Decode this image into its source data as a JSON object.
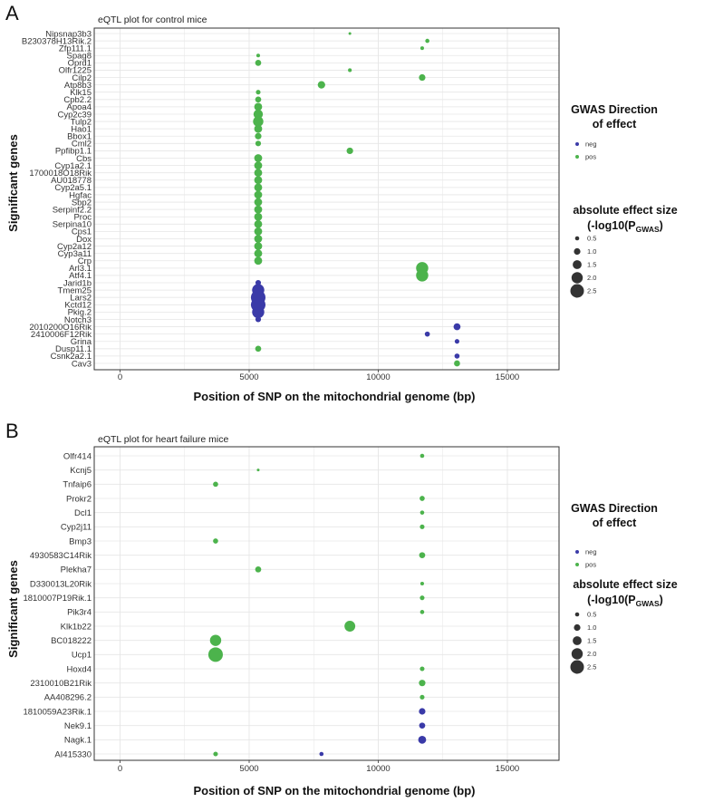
{
  "colors": {
    "neg": "#3a3aa8",
    "pos": "#4cb34c",
    "grid": "#e6e6e6",
    "frame": "#333333"
  },
  "panel_labels": [
    "A",
    "B"
  ],
  "chart_data": [
    {
      "type": "scatter",
      "panel": "A",
      "title": "eQTL plot for control mice",
      "xlabel": "Position of SNP on the mitochondrial genome (bp)",
      "ylabel": "Significant genes",
      "xlim": [
        -1000,
        17000
      ],
      "xticks": [
        0,
        5000,
        10000,
        15000
      ],
      "categories": [
        "Nipsnap3b3",
        "B230378H13Rik.2",
        "Zfp111.1",
        "Spag8",
        "Oprd1",
        "Olfr1225",
        "Cilp2",
        "Atp8b3",
        "Klk15",
        "Cpb2.2",
        "Apoa4",
        "Cyp2c39",
        "Tulp2",
        "Hao1",
        "Bbox1",
        "Cml2",
        "Ppfibp1.1",
        "Cbs",
        "Cyp1a2.1",
        "1700018O18Rik",
        "AU018778",
        "Cyp2a5.1",
        "Hgfac",
        "Sbp2",
        "Serpinf2.2",
        "Proc",
        "Serpina10",
        "Cps1",
        "Dox",
        "Cyp2a12",
        "Cyp3a11",
        "Crp",
        "Arl3.1",
        "Atf4.1",
        "Jarid1b",
        "Tmem25",
        "Lars2",
        "Kctd12",
        "Pkig.2",
        "Notch3",
        "2010200O16Rik",
        "2410006F12Rik",
        "Grina",
        "Dusp11.1",
        "Csnk2a2.1",
        "Cav3"
      ],
      "points": [
        {
          "gene": "Nipsnap3b3",
          "x": 8900,
          "direction": "pos",
          "effect": 0.2
        },
        {
          "gene": "B230378H13Rik.2",
          "x": 11900,
          "direction": "pos",
          "effect": 0.5
        },
        {
          "gene": "Zfp111.1",
          "x": 11700,
          "direction": "pos",
          "effect": 0.4
        },
        {
          "gene": "Spag8",
          "x": 5350,
          "direction": "pos",
          "effect": 0.4
        },
        {
          "gene": "Oprd1",
          "x": 5350,
          "direction": "pos",
          "effect": 0.9
        },
        {
          "gene": "Olfr1225",
          "x": 8900,
          "direction": "pos",
          "effect": 0.4
        },
        {
          "gene": "Cilp2",
          "x": 11700,
          "direction": "pos",
          "effect": 1.0
        },
        {
          "gene": "Atp8b3",
          "x": 7800,
          "direction": "pos",
          "effect": 1.2
        },
        {
          "gene": "Klk15",
          "x": 5350,
          "direction": "pos",
          "effect": 0.6
        },
        {
          "gene": "Cpb2.2",
          "x": 5350,
          "direction": "pos",
          "effect": 0.9
        },
        {
          "gene": "Apoa4",
          "x": 5350,
          "direction": "pos",
          "effect": 1.3
        },
        {
          "gene": "Cyp2c39",
          "x": 5350,
          "direction": "pos",
          "effect": 1.6
        },
        {
          "gene": "Tulp2",
          "x": 5350,
          "direction": "pos",
          "effect": 1.8
        },
        {
          "gene": "Hao1",
          "x": 5350,
          "direction": "pos",
          "effect": 1.3
        },
        {
          "gene": "Bbox1",
          "x": 5350,
          "direction": "pos",
          "effect": 1.0
        },
        {
          "gene": "Cml2",
          "x": 5350,
          "direction": "pos",
          "effect": 0.8
        },
        {
          "gene": "Ppfibp1.1",
          "x": 8900,
          "direction": "pos",
          "effect": 1.0
        },
        {
          "gene": "Cbs",
          "x": 5350,
          "direction": "pos",
          "effect": 1.3
        },
        {
          "gene": "Cyp1a2.1",
          "x": 5350,
          "direction": "pos",
          "effect": 1.3
        },
        {
          "gene": "1700018O18Rik",
          "x": 5350,
          "direction": "pos",
          "effect": 1.3
        },
        {
          "gene": "AU018778",
          "x": 5350,
          "direction": "pos",
          "effect": 1.3
        },
        {
          "gene": "Cyp2a5.1",
          "x": 5350,
          "direction": "pos",
          "effect": 1.3
        },
        {
          "gene": "Hgfac",
          "x": 5350,
          "direction": "pos",
          "effect": 1.3
        },
        {
          "gene": "Sbp2",
          "x": 5350,
          "direction": "pos",
          "effect": 1.3
        },
        {
          "gene": "Serpinf2.2",
          "x": 5350,
          "direction": "pos",
          "effect": 1.3
        },
        {
          "gene": "Proc",
          "x": 5350,
          "direction": "pos",
          "effect": 1.3
        },
        {
          "gene": "Serpina10",
          "x": 5350,
          "direction": "pos",
          "effect": 1.3
        },
        {
          "gene": "Cps1",
          "x": 5350,
          "direction": "pos",
          "effect": 1.3
        },
        {
          "gene": "Dox",
          "x": 5350,
          "direction": "pos",
          "effect": 1.3
        },
        {
          "gene": "Cyp2a12",
          "x": 5350,
          "direction": "pos",
          "effect": 1.3
        },
        {
          "gene": "Cyp3a11",
          "x": 5350,
          "direction": "pos",
          "effect": 1.3
        },
        {
          "gene": "Crp",
          "x": 5350,
          "direction": "pos",
          "effect": 1.3
        },
        {
          "gene": "Arl3.1",
          "x": 11700,
          "direction": "pos",
          "effect": 2.2
        },
        {
          "gene": "Atf4.1",
          "x": 11700,
          "direction": "pos",
          "effect": 2.2
        },
        {
          "gene": "Jarid1b",
          "x": 5350,
          "direction": "neg",
          "effect": 0.8
        },
        {
          "gene": "Tmem25",
          "x": 5350,
          "direction": "neg",
          "effect": 2.2
        },
        {
          "gene": "Lars2",
          "x": 5350,
          "direction": "neg",
          "effect": 2.7
        },
        {
          "gene": "Kctd12",
          "x": 5350,
          "direction": "neg",
          "effect": 2.7
        },
        {
          "gene": "Pkig.2",
          "x": 5350,
          "direction": "neg",
          "effect": 2.2
        },
        {
          "gene": "Notch3",
          "x": 5350,
          "direction": "neg",
          "effect": 0.8
        },
        {
          "gene": "2010200O16Rik",
          "x": 13050,
          "direction": "neg",
          "effect": 1.1
        },
        {
          "gene": "2410006F12Rik",
          "x": 11900,
          "direction": "neg",
          "effect": 0.7
        },
        {
          "gene": "Grina",
          "x": 13050,
          "direction": "neg",
          "effect": 0.6
        },
        {
          "gene": "Dusp11.1",
          "x": 5350,
          "direction": "pos",
          "effect": 0.9
        },
        {
          "gene": "Csnk2a2.1",
          "x": 13050,
          "direction": "neg",
          "effect": 0.7
        },
        {
          "gene": "Cav3",
          "x": 13050,
          "direction": "pos",
          "effect": 0.9
        }
      ],
      "legend": {
        "direction_title_line1": "GWAS Direction",
        "direction_title_line2": "of effect",
        "direction_entries": [
          "neg",
          "pos"
        ],
        "size_title_line1": "absolute effect size",
        "size_title_pre": "(-log10(P",
        "size_title_sub": "GWAS",
        "size_title_post": ")",
        "size_entries": [
          "0.5",
          "1.0",
          "1.5",
          "2.0",
          "2.5"
        ],
        "size_values": [
          0.5,
          1.0,
          1.5,
          2.0,
          2.5
        ]
      }
    },
    {
      "type": "scatter",
      "panel": "B",
      "title": "eQTL plot for heart failure mice",
      "xlabel": "Position of SNP on the mitochondrial genome (bp)",
      "ylabel": "Significant genes",
      "xlim": [
        -1000,
        17000
      ],
      "xticks": [
        0,
        5000,
        10000,
        15000
      ],
      "categories": [
        "Olfr414",
        "Kcnj5",
        "Tnfaip6",
        "Prokr2",
        "Dcl1",
        "Cyp2j11",
        "Bmp3",
        "4930583C14Rik",
        "Plekha7",
        "D330013L20Rik",
        "1810007P19Rik.1",
        "Pik3r4",
        "Klk1b22",
        "BC018222",
        "Ucp1",
        "Hoxd4",
        "2310010B21Rik",
        "AA408296.2",
        "1810059A23Rik.1",
        "Nek9.1",
        "Nagk.1",
        "AI415330"
      ],
      "points": [
        {
          "gene": "Olfr414",
          "x": 11700,
          "direction": "pos",
          "effect": 0.5
        },
        {
          "gene": "Kcnj5",
          "x": 5350,
          "direction": "pos",
          "effect": 0.2
        },
        {
          "gene": "Tnfaip6",
          "x": 3700,
          "direction": "pos",
          "effect": 0.7
        },
        {
          "gene": "Prokr2",
          "x": 11700,
          "direction": "pos",
          "effect": 0.7
        },
        {
          "gene": "Dcl1",
          "x": 11700,
          "direction": "pos",
          "effect": 0.5
        },
        {
          "gene": "Cyp2j11",
          "x": 11700,
          "direction": "pos",
          "effect": 0.6
        },
        {
          "gene": "Bmp3",
          "x": 3700,
          "direction": "pos",
          "effect": 0.7
        },
        {
          "gene": "4930583C14Rik",
          "x": 11700,
          "direction": "pos",
          "effect": 0.9
        },
        {
          "gene": "Plekha7",
          "x": 5350,
          "direction": "pos",
          "effect": 0.9
        },
        {
          "gene": "D330013L20Rik",
          "x": 11700,
          "direction": "pos",
          "effect": 0.4
        },
        {
          "gene": "1810007P19Rik.1",
          "x": 11700,
          "direction": "pos",
          "effect": 0.6
        },
        {
          "gene": "Pik3r4",
          "x": 11700,
          "direction": "pos",
          "effect": 0.5
        },
        {
          "gene": "Klk1b22",
          "x": 8900,
          "direction": "pos",
          "effect": 1.9
        },
        {
          "gene": "BC018222",
          "x": 3700,
          "direction": "pos",
          "effect": 2.0
        },
        {
          "gene": "Ucp1",
          "x": 3700,
          "direction": "pos",
          "effect": 2.7
        },
        {
          "gene": "Hoxd4",
          "x": 11700,
          "direction": "pos",
          "effect": 0.6
        },
        {
          "gene": "2310010B21Rik",
          "x": 11700,
          "direction": "pos",
          "effect": 1.0
        },
        {
          "gene": "AA408296.2",
          "x": 11700,
          "direction": "pos",
          "effect": 0.6
        },
        {
          "gene": "1810059A23Rik.1",
          "x": 11700,
          "direction": "neg",
          "effect": 1.0
        },
        {
          "gene": "Nek9.1",
          "x": 11700,
          "direction": "neg",
          "effect": 0.9
        },
        {
          "gene": "Nagk.1",
          "x": 11700,
          "direction": "neg",
          "effect": 1.3
        },
        {
          "gene": "AI415330",
          "x": 3700,
          "direction": "pos",
          "effect": 0.6
        },
        {
          "gene": "AI415330",
          "x": 7800,
          "direction": "neg",
          "effect": 0.5
        }
      ],
      "legend": {
        "direction_title_line1": "GWAS Direction",
        "direction_title_line2": "of effect",
        "direction_entries": [
          "neg",
          "pos"
        ],
        "size_title_line1": "absolute effect size",
        "size_title_pre": "(-log10(P",
        "size_title_sub": "GWAS",
        "size_title_post": ")",
        "size_entries": [
          "0.5",
          "1.0",
          "1.5",
          "2.0",
          "2.5"
        ],
        "size_values": [
          0.5,
          1.0,
          1.5,
          2.0,
          2.5
        ]
      }
    }
  ]
}
